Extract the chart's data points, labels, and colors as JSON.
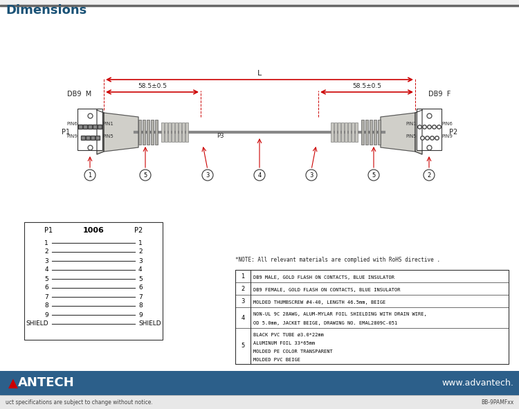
{
  "title": "imensions",
  "title_prefix": "D",
  "bg_color": "#f0f0f0",
  "white": "#ffffff",
  "dark_blue": "#1a5276",
  "gray": "#888888",
  "dark_gray": "#444444",
  "black": "#000000",
  "red": "#cc0000",
  "header_line_color": "#666666",
  "connector_fill": "#d0cfc9",
  "connector_edge": "#555555",
  "dimension_line_color": "#cc0000",
  "note_text": "*NOTE: All relevant materials are complied with RoHS directive .",
  "wiring_title": "1006",
  "wiring_pins": [
    "1",
    "2",
    "3",
    "4",
    "5",
    "6",
    "7",
    "8",
    "9",
    "SHIELD"
  ],
  "dim_label_58": "58.5±0.5",
  "dim_label_L": "L",
  "label_db9m": "DB9  M",
  "label_db9f": "DB9  F",
  "label_p1": "P1",
  "label_p2": "P2",
  "label_p3": "P3",
  "label_pin1": "PIN1",
  "label_pin5": "PIN5",
  "label_pin6": "PIN6",
  "label_pin9": "PIN9",
  "footer_left": "uct specifications are subject to change without notice.",
  "footer_right": "BB-9PAMFxx",
  "footer_url": "www.advantech.",
  "footer_brand_a_color": "#cc0000",
  "footer_bar_bg": "#2c5f8a",
  "bom_row_heights": [
    52,
    30,
    18,
    18,
    18
  ],
  "bom_items": [
    "5",
    "4",
    "3",
    "2",
    "1"
  ],
  "bom_descs": [
    "BLACK PVC TUBE ø3.0*22mm\nALUMINUM FOIL 33*65mm\nMOLDED PE COLOR TRANSPARENT\nMOLDED PVC BEIGE",
    "NON-UL 9C 28AWG, ALUM-MYLAR FOIL SHIELDING WITH DRAIN WIRE,\nOD 5.0mm, JACKET BEIGE, DRAWING NO. EMAL2809C-051",
    "MOLDED THUMBSCREW #4-40, LENGTH 46.5mm, BEIGE",
    "DB9 FEMALE, GOLD FLASH ON CONTACTS, BLUE INSULATOR",
    "DB9 MALE, GOLD FLASH ON CONTACTS, BLUE INSULATOR"
  ]
}
